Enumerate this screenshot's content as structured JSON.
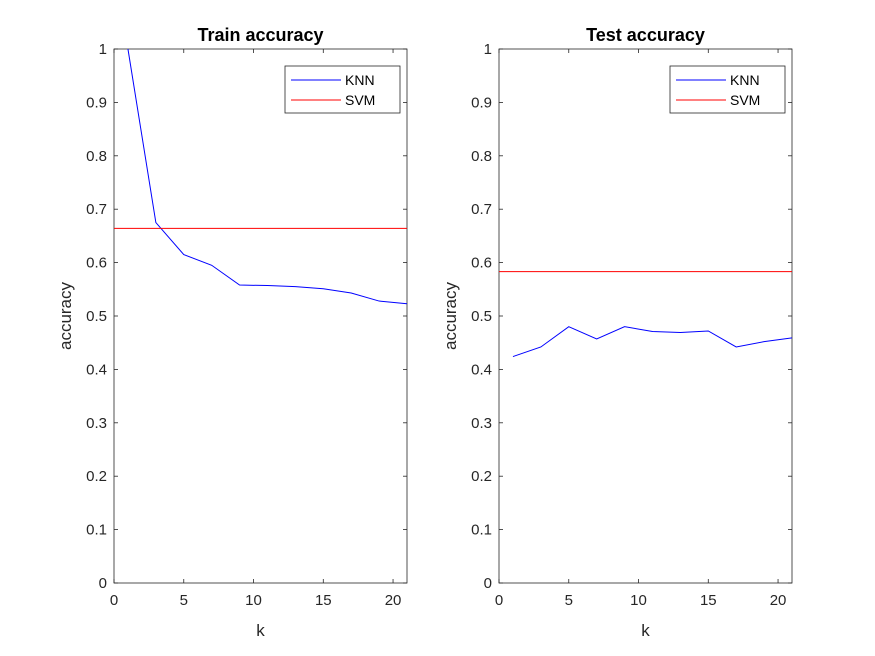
{
  "chart_data": [
    {
      "type": "line",
      "title": "Train accuracy",
      "xlabel": "k",
      "ylabel": "accuracy",
      "xlim": [
        0,
        21
      ],
      "ylim": [
        0,
        1
      ],
      "xticks": [
        0,
        5,
        10,
        15,
        20
      ],
      "yticks": [
        0,
        0.1,
        0.2,
        0.3,
        0.4,
        0.5,
        0.6,
        0.7,
        0.8,
        0.9,
        1
      ],
      "legend_position": "top-right",
      "grid": false,
      "series": [
        {
          "name": "KNN",
          "color": "#0000ff",
          "x": [
            1,
            3,
            5,
            7,
            9,
            11,
            13,
            15,
            17,
            19,
            21
          ],
          "y": [
            1.0,
            0.675,
            0.615,
            0.595,
            0.558,
            0.557,
            0.555,
            0.551,
            0.543,
            0.528,
            0.523
          ]
        },
        {
          "name": "SVM",
          "color": "#ff0000",
          "x": [
            0,
            21
          ],
          "y": [
            0.664,
            0.664
          ]
        }
      ]
    },
    {
      "type": "line",
      "title": "Test accuracy",
      "xlabel": "k",
      "ylabel": "accuracy",
      "xlim": [
        0,
        21
      ],
      "ylim": [
        0,
        1
      ],
      "xticks": [
        0,
        5,
        10,
        15,
        20
      ],
      "yticks": [
        0,
        0.1,
        0.2,
        0.3,
        0.4,
        0.5,
        0.6,
        0.7,
        0.8,
        0.9,
        1
      ],
      "legend_position": "top-right",
      "grid": false,
      "series": [
        {
          "name": "KNN",
          "color": "#0000ff",
          "x": [
            1,
            3,
            5,
            7,
            9,
            11,
            13,
            15,
            17,
            19,
            21
          ],
          "y": [
            0.424,
            0.442,
            0.48,
            0.457,
            0.48,
            0.471,
            0.469,
            0.472,
            0.442,
            0.452,
            0.459
          ]
        },
        {
          "name": "SVM",
          "color": "#ff0000",
          "x": [
            0,
            21
          ],
          "y": [
            0.583,
            0.583
          ]
        }
      ]
    }
  ]
}
